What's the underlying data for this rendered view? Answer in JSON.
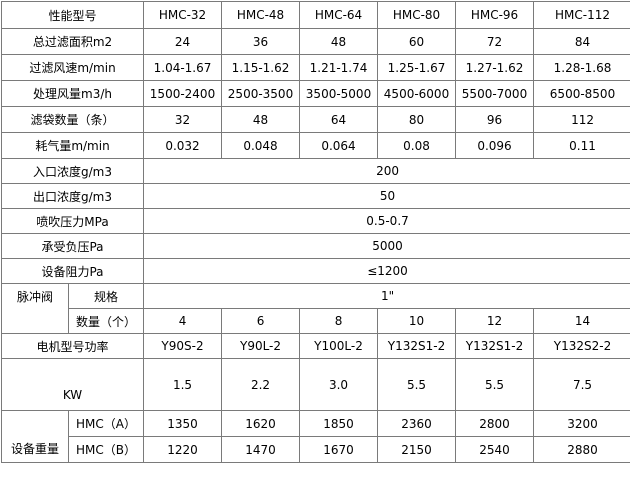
{
  "header": {
    "label": "性能型号",
    "models": [
      "HMC-32",
      "HMC-48",
      "HMC-64",
      "HMC-80",
      "HMC-96",
      "HMC-112"
    ]
  },
  "rows": [
    {
      "label": "总过滤面积m2",
      "values": [
        "24",
        "36",
        "48",
        "60",
        "72",
        "84"
      ]
    },
    {
      "label": "过滤风速m/min",
      "values": [
        "1.04-1.67",
        "1.15-1.62",
        "1.21-1.74",
        "1.25-1.67",
        "1.27-1.62",
        "1.28-1.68"
      ]
    },
    {
      "label": "处理风量m3/h",
      "values": [
        "1500-2400",
        "2500-3500",
        "3500-5000",
        "4500-6000",
        "5500-7000",
        "6500-8500"
      ]
    },
    {
      "label": "滤袋数量（条）",
      "values": [
        "32",
        "48",
        "64",
        "80",
        "96",
        "112"
      ]
    },
    {
      "label": "耗气量m/min",
      "values": [
        "0.032",
        "0.048",
        "0.064",
        "0.08",
        "0.096",
        "0.11"
      ]
    }
  ],
  "common": [
    {
      "label": "入口浓度g/m3",
      "value": "200"
    },
    {
      "label": "出口浓度g/m3",
      "value": "50"
    },
    {
      "label": "喷吹压力MPa",
      "value": "0.5-0.7"
    },
    {
      "label": "承受负压Pa",
      "value": "5000"
    },
    {
      "label": "设备阻力Pa",
      "value": "≤1200"
    }
  ],
  "valve": {
    "label": "脉冲阀",
    "spec_label": "规格",
    "spec_value": "1\"",
    "count_label": "数量（个）",
    "counts": [
      "4",
      "6",
      "8",
      "10",
      "12",
      "14"
    ]
  },
  "motor": {
    "label": "电机型号功率",
    "models": [
      "Y90S-2",
      "Y90L-2",
      "Y100L-2",
      "Y132S1-2",
      "Y132S1-2",
      "Y132S2-2"
    ],
    "kw_label": "KW",
    "kw": [
      "1.5",
      "2.2",
      "3.0",
      "5.5",
      "5.5",
      "7.5"
    ]
  },
  "weight": {
    "label": "设备重量",
    "a_label": "HMC（A）",
    "a": [
      "1350",
      "1620",
      "1850",
      "2360",
      "2800",
      "3200"
    ],
    "b_label": "HMC（B）",
    "b": [
      "1220",
      "1470",
      "1670",
      "2150",
      "2540",
      "2880"
    ]
  }
}
